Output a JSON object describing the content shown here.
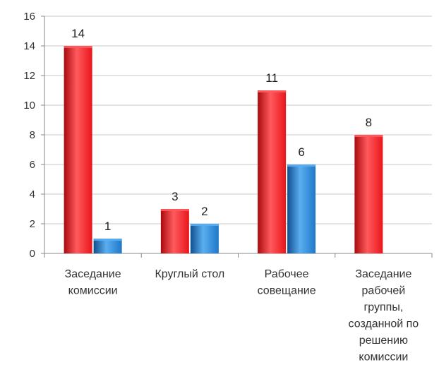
{
  "colors": {
    "series_red": "#e8161b",
    "series_red_dark": "#a80a0e",
    "series_red_light": "#ff5a5e",
    "series_blue": "#1f78c8",
    "series_blue_dark": "#0f4f8e",
    "series_blue_light": "#5aaef0",
    "grid": "#c8c8c8",
    "axis": "#8a8a8a"
  },
  "chart_data": {
    "type": "bar",
    "title": "",
    "xlabel": "",
    "ylabel": "",
    "ylim": [
      0,
      16
    ],
    "yticks": [
      "0",
      "2",
      "4",
      "6",
      "8",
      "10",
      "12",
      "14",
      "16"
    ],
    "grid": true,
    "legend": "none",
    "categories": [
      [
        "Заседание",
        "комиссии"
      ],
      [
        "Круглый стол"
      ],
      [
        "Рабочее",
        "совещание"
      ],
      [
        "Заседание",
        "рабочей",
        "группы,",
        "созданной по",
        "решению",
        "комиссии"
      ]
    ],
    "series": [
      {
        "values": [
          14,
          3,
          11,
          8
        ],
        "labels": [
          "14",
          "3",
          "11",
          "8"
        ]
      },
      {
        "values": [
          1,
          2,
          6,
          null
        ],
        "labels": [
          "1",
          "2",
          "6",
          ""
        ]
      }
    ]
  }
}
